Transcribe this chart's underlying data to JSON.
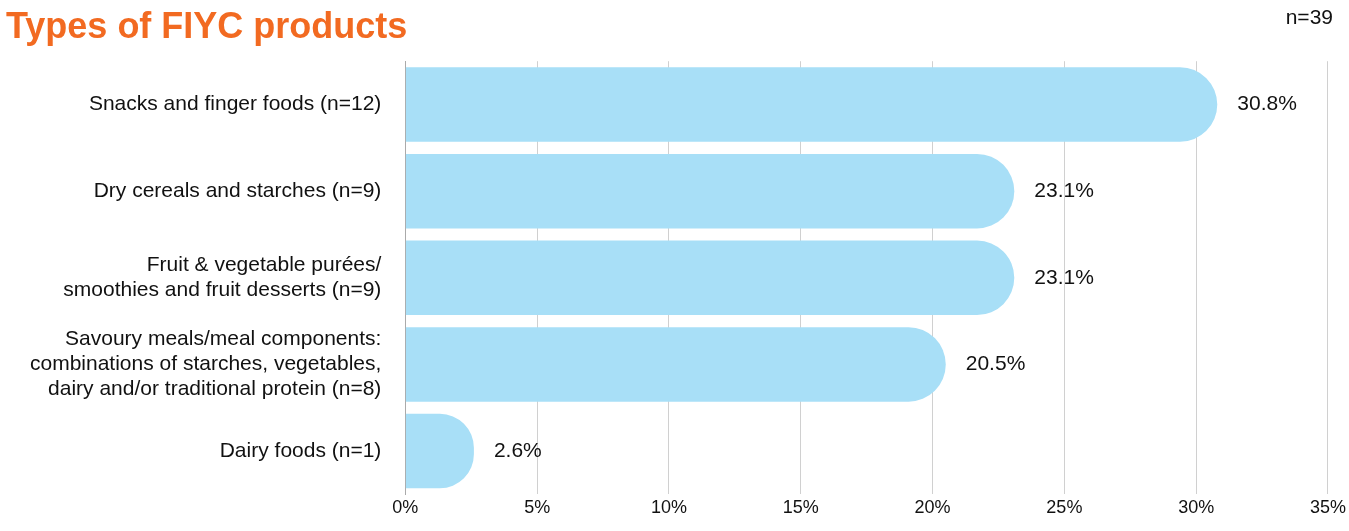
{
  "chart_data": {
    "type": "bar",
    "orientation": "horizontal",
    "title": "Types of FIYC products",
    "annotations": [
      "n=39"
    ],
    "categories": [
      "Snacks and finger foods (n=12)",
      "Dry cereals and starches (n=9)",
      "Fruit & vegetable purées/\nsmoothies and fruit desserts (n=9)",
      "Savoury meals/meal components:\ncombinations of starches, vegetables,\ndairy and/or traditional protein (n=8)",
      "Dairy foods (n=1)"
    ],
    "values": [
      30.8,
      23.1,
      23.1,
      20.5,
      2.6
    ],
    "value_labels": [
      "30.8%",
      "23.1%",
      "23.1%",
      "20.5%",
      "2.6%"
    ],
    "color": "#a8dff7",
    "xlim": [
      0,
      35
    ],
    "xticks": [
      {
        "value": 0,
        "label": "0%"
      },
      {
        "value": 5,
        "label": "5%"
      },
      {
        "value": 10,
        "label": "10%"
      },
      {
        "value": 15,
        "label": "15%"
      },
      {
        "value": 20,
        "label": "20%"
      },
      {
        "value": 25,
        "label": "25%"
      },
      {
        "value": 30,
        "label": "30%"
      },
      {
        "value": 35,
        "label": "35%"
      }
    ],
    "grid": "x",
    "legend": false
  }
}
